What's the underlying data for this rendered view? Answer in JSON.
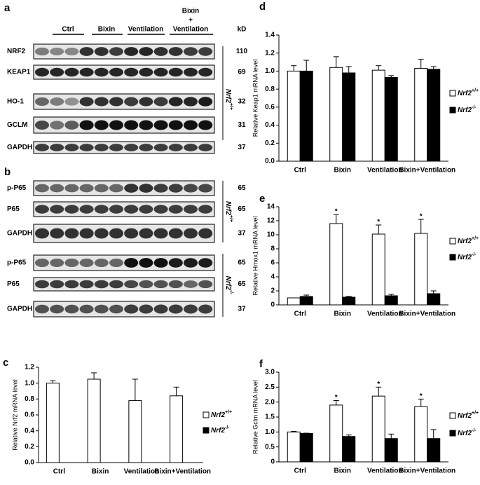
{
  "blot_a": {
    "letter": "a",
    "groups": [
      [
        "Ctrl"
      ],
      [
        "Bixin"
      ],
      [
        "Ventilation"
      ],
      [
        "Bixin",
        "+",
        "Ventilation"
      ]
    ],
    "kd_header": "kD",
    "rows": [
      {
        "label": "NRF2",
        "kd": 110
      },
      {
        "label": "KEAP1",
        "kd": 69
      },
      {
        "label": "HO-1",
        "kd": 32
      },
      {
        "label": "GCLM",
        "kd": 31
      },
      {
        "label": "GAPDH",
        "kd": 37
      }
    ],
    "genotypes": [
      "Nrf2+/+"
    ]
  },
  "blot_b": {
    "letter": "b",
    "rows": [
      {
        "label": "p-P65",
        "kd": 65
      },
      {
        "label": "P65",
        "kd": 65
      },
      {
        "label": "GAPDH",
        "kd": 37
      },
      {
        "label": "p-P65",
        "kd": 65
      },
      {
        "label": "P65",
        "kd": 65
      },
      {
        "label": "GAPDH",
        "kd": 37
      }
    ],
    "genotypes": [
      "Nrf2+/+",
      "Nrf2-/-"
    ]
  },
  "chart_data": [
    {
      "type": "bar",
      "letter": "c",
      "ylabel": "Relative Nrf2 mRNA level",
      "categories": [
        "Ctrl",
        "Bixin",
        "Ventilation",
        "Bixin+Ventilation"
      ],
      "series": [
        {
          "name": "Nrf2+/+",
          "color": "#ffffff",
          "values": [
            1.0,
            1.05,
            0.78,
            0.84
          ],
          "errors": [
            0.03,
            0.08,
            0.27,
            0.11
          ]
        },
        {
          "name": "Nrf2-/-",
          "color": "#000000",
          "values": [
            null,
            null,
            null,
            null
          ],
          "errors": [
            null,
            null,
            null,
            null
          ]
        }
      ],
      "ylim": [
        0,
        1.2
      ],
      "yticks": [
        {
          "value": 0,
          "label": "0.0"
        },
        0.2,
        0.4,
        0.6,
        0.8,
        {
          "value": 1,
          "label": "1.0"
        },
        1.2
      ]
    },
    {
      "type": "bar",
      "letter": "d",
      "ylabel": "Relative Keap1 mRNA level",
      "categories": [
        "Ctrl",
        "Bixin",
        "Ventilation",
        "Bixin+Ventilation"
      ],
      "series": [
        {
          "name": "Nrf2+/+",
          "color": "#ffffff",
          "values": [
            1.0,
            1.04,
            1.01,
            1.03
          ],
          "errors": [
            0.06,
            0.12,
            0.05,
            0.1
          ]
        },
        {
          "name": "Nrf2-/-",
          "color": "#000000",
          "values": [
            1.0,
            0.98,
            0.93,
            1.02
          ],
          "errors": [
            0.12,
            0.07,
            0.02,
            0.03
          ]
        }
      ],
      "ylim": [
        0,
        1.4
      ],
      "yticks": [
        {
          "value": 0,
          "label": "0.0"
        },
        0.2,
        0.4,
        0.6,
        0.8,
        {
          "value": 1,
          "label": "1.0"
        },
        1.2,
        1.4
      ]
    },
    {
      "type": "bar",
      "letter": "e",
      "ylabel": "Relative Hmox1 mRNA level",
      "categories": [
        "Ctrl",
        "Bixin",
        "Ventilation",
        "Bixin+Ventilation"
      ],
      "series": [
        {
          "name": "Nrf2+/+",
          "color": "#ffffff",
          "values": [
            1.0,
            11.6,
            10.1,
            10.2
          ],
          "errors": [
            0,
            1.3,
            1.3,
            2.0
          ]
        },
        {
          "name": "Nrf2-/-",
          "color": "#000000",
          "values": [
            1.2,
            1.1,
            1.3,
            1.6
          ],
          "errors": [
            0.2,
            0.1,
            0.2,
            0.4
          ]
        }
      ],
      "significance": [
        null,
        "*",
        "*",
        "*"
      ],
      "ylim": [
        0,
        14
      ],
      "yticks": [
        0,
        2,
        4,
        6,
        8,
        10,
        12,
        14
      ]
    },
    {
      "type": "bar",
      "letter": "f",
      "ylabel": "Relative Gclm mRNA level",
      "categories": [
        "Ctrl",
        "Bixin",
        "Ventilation",
        "Bixin+Ventilation"
      ],
      "series": [
        {
          "name": "Nrf2+/+",
          "color": "#ffffff",
          "values": [
            1.0,
            1.9,
            2.2,
            1.85
          ],
          "errors": [
            0.02,
            0.15,
            0.3,
            0.25
          ]
        },
        {
          "name": "Nrf2-/-",
          "color": "#000000",
          "values": [
            0.95,
            0.85,
            0.78,
            0.78
          ],
          "errors": [
            0.01,
            0.05,
            0.15,
            0.3
          ]
        }
      ],
      "significance": [
        null,
        "*",
        "*",
        "*"
      ],
      "ylim": [
        0,
        3
      ],
      "yticks": [
        0,
        0.5,
        {
          "value": 1,
          "label": "1.0"
        },
        1.5,
        {
          "value": 2,
          "label": "2.0"
        },
        2.5,
        {
          "value": 3,
          "label": "3.0"
        }
      ]
    }
  ]
}
